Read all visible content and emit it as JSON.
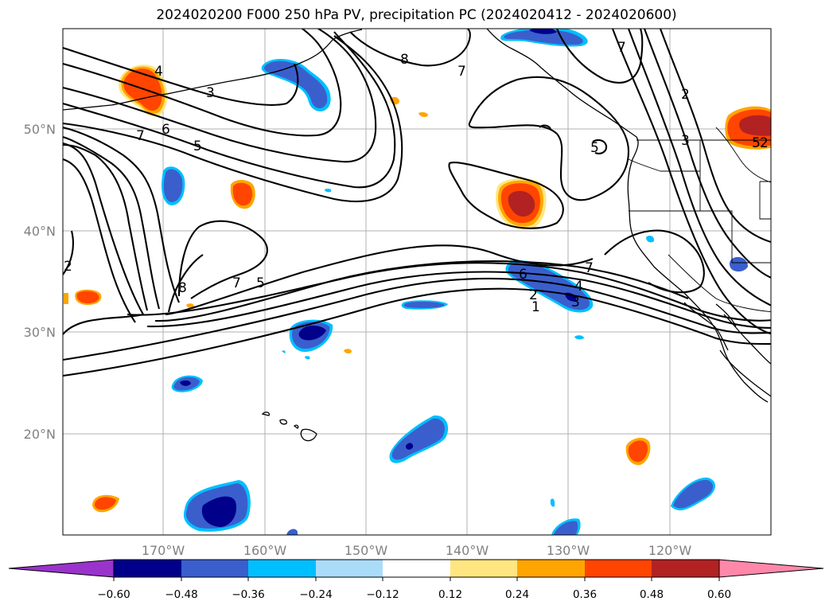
{
  "title": "2024020200 F000 250 hPa PV, precipitation PC (2024020412 - 2024020600)",
  "map": {
    "lon_ticks": [
      "170°W",
      "160°W",
      "150°W",
      "140°W",
      "130°W",
      "120°W"
    ],
    "lat_ticks": [
      "50°N",
      "40°N",
      "30°N",
      "20°N"
    ],
    "contour_labels": [
      "4",
      "3",
      "6",
      "7",
      "5",
      "8",
      "7",
      "2",
      "7",
      "5",
      "8",
      "7",
      "6",
      "4",
      "2",
      "1",
      "7",
      "5",
      "3",
      "2",
      "3",
      "5",
      "2"
    ],
    "grid": true
  },
  "colorbar": {
    "ticks": [
      "−0.60",
      "−0.48",
      "−0.36",
      "−0.24",
      "−0.12",
      "0.12",
      "0.24",
      "0.36",
      "0.48",
      "0.60"
    ],
    "colors": [
      "#9933cc",
      "#00008b",
      "#3a5fcd",
      "#00bfff",
      "#aadcfa",
      "#ffffff",
      "#ffe680",
      "#ffa500",
      "#ff4500",
      "#b22222",
      "#ff88aa"
    ]
  }
}
